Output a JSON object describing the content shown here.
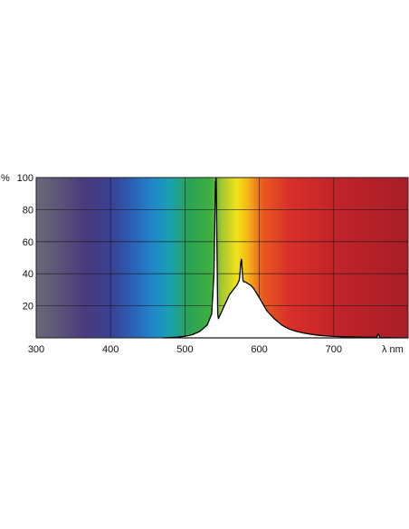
{
  "chart_data": {
    "type": "area",
    "title": "",
    "xlabel": "λ nm",
    "ylabel": "%",
    "xlim": [
      300,
      800
    ],
    "ylim": [
      0,
      100
    ],
    "x_ticks": [
      {
        "value": 300,
        "label": "300"
      },
      {
        "value": 400,
        "label": "400"
      },
      {
        "value": 500,
        "label": "500"
      },
      {
        "value": 600,
        "label": "600"
      },
      {
        "value": 700,
        "label": "700"
      }
    ],
    "y_ticks": [
      {
        "value": 20,
        "label": "20"
      },
      {
        "value": 40,
        "label": "40"
      },
      {
        "value": 60,
        "label": "60"
      },
      {
        "value": 80,
        "label": "80"
      },
      {
        "value": 100,
        "label": "100"
      }
    ],
    "grid": true,
    "background": "visible spectrum gradient",
    "spectrum_colors": [
      {
        "wl": 300,
        "color": "#6b6878"
      },
      {
        "wl": 330,
        "color": "#5c5577"
      },
      {
        "wl": 365,
        "color": "#4a3a7c"
      },
      {
        "wl": 400,
        "color": "#3a3f93"
      },
      {
        "wl": 430,
        "color": "#2a62b5"
      },
      {
        "wl": 455,
        "color": "#1f84cc"
      },
      {
        "wl": 480,
        "color": "#1aa0b0"
      },
      {
        "wl": 505,
        "color": "#2aa355"
      },
      {
        "wl": 535,
        "color": "#3eb040"
      },
      {
        "wl": 550,
        "color": "#a8c830"
      },
      {
        "wl": 570,
        "color": "#f2e21a"
      },
      {
        "wl": 585,
        "color": "#f5b418"
      },
      {
        "wl": 605,
        "color": "#e8591f"
      },
      {
        "wl": 640,
        "color": "#d8302a"
      },
      {
        "wl": 700,
        "color": "#c2242a"
      },
      {
        "wl": 800,
        "color": "#a81d26"
      }
    ],
    "series": [
      {
        "x": [
          470,
          490,
          500,
          510,
          520,
          530,
          536,
          539,
          541,
          542,
          543,
          544,
          545,
          546,
          548,
          552,
          556,
          560,
          565,
          570,
          573,
          574,
          575,
          576,
          577,
          578,
          579,
          581,
          584,
          588,
          592,
          596,
          600,
          605,
          610,
          620,
          630,
          640,
          650,
          660,
          670,
          680,
          690,
          700,
          720,
          740,
          758,
          759,
          760,
          761,
          762,
          780,
          800
        ],
        "y": [
          0,
          0.5,
          1,
          2,
          4,
          8,
          15,
          40,
          97,
          100,
          60,
          15,
          12,
          13,
          15,
          19,
          23,
          27,
          30,
          33,
          36,
          40,
          47,
          49,
          42,
          36,
          35,
          35,
          34,
          33,
          31,
          28,
          25,
          21,
          17,
          12,
          8,
          5.5,
          4,
          3,
          2.2,
          1.6,
          1.2,
          0.9,
          0.6,
          0.4,
          0.4,
          1.5,
          2.5,
          1.5,
          0.3,
          0.1,
          0
        ]
      }
    ]
  }
}
